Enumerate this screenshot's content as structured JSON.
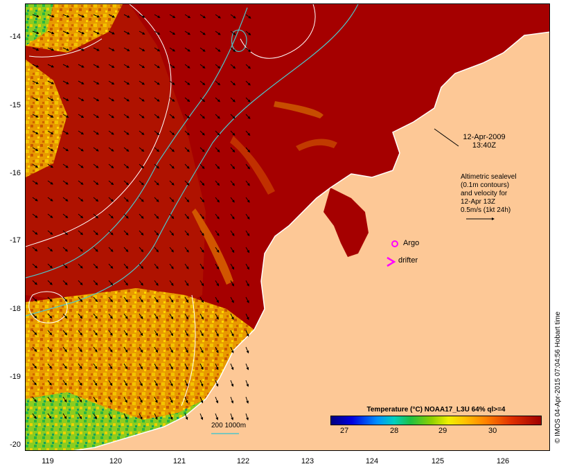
{
  "map": {
    "lat_labels": [
      "-14",
      "-15",
      "-16",
      "-17",
      "-18",
      "-19",
      "-20"
    ],
    "lon_labels": [
      "119",
      "120",
      "121",
      "122",
      "123",
      "124",
      "125",
      "126"
    ],
    "timestamp_date": "12-Apr-2009",
    "timestamp_time": "13:40Z",
    "altimetry_note": [
      "Altimetric sealevel",
      "(0.1m contours)",
      "and velocity for",
      "12-Apr 13Z",
      "0.5m/s (1kt 24h)"
    ],
    "argo_label": "Argo",
    "drifter_label": "drifter",
    "scale_label": "200  1000m",
    "colorbar_title": "Temperature (°C) NOAA17_L3U 64% ql>=4",
    "colorbar_ticks": [
      "27",
      "28",
      "29",
      "30"
    ],
    "credit": "© IMOS 04-Apr-2015 07:04:56 Hobart time",
    "colors": {
      "land": "#fdc896",
      "warm_sea": "#a50000",
      "medium_sea": "#c83200",
      "isobath": "#4fc4c8",
      "ssh_contour": "#ffffff",
      "marker": "#ff00ff"
    }
  }
}
